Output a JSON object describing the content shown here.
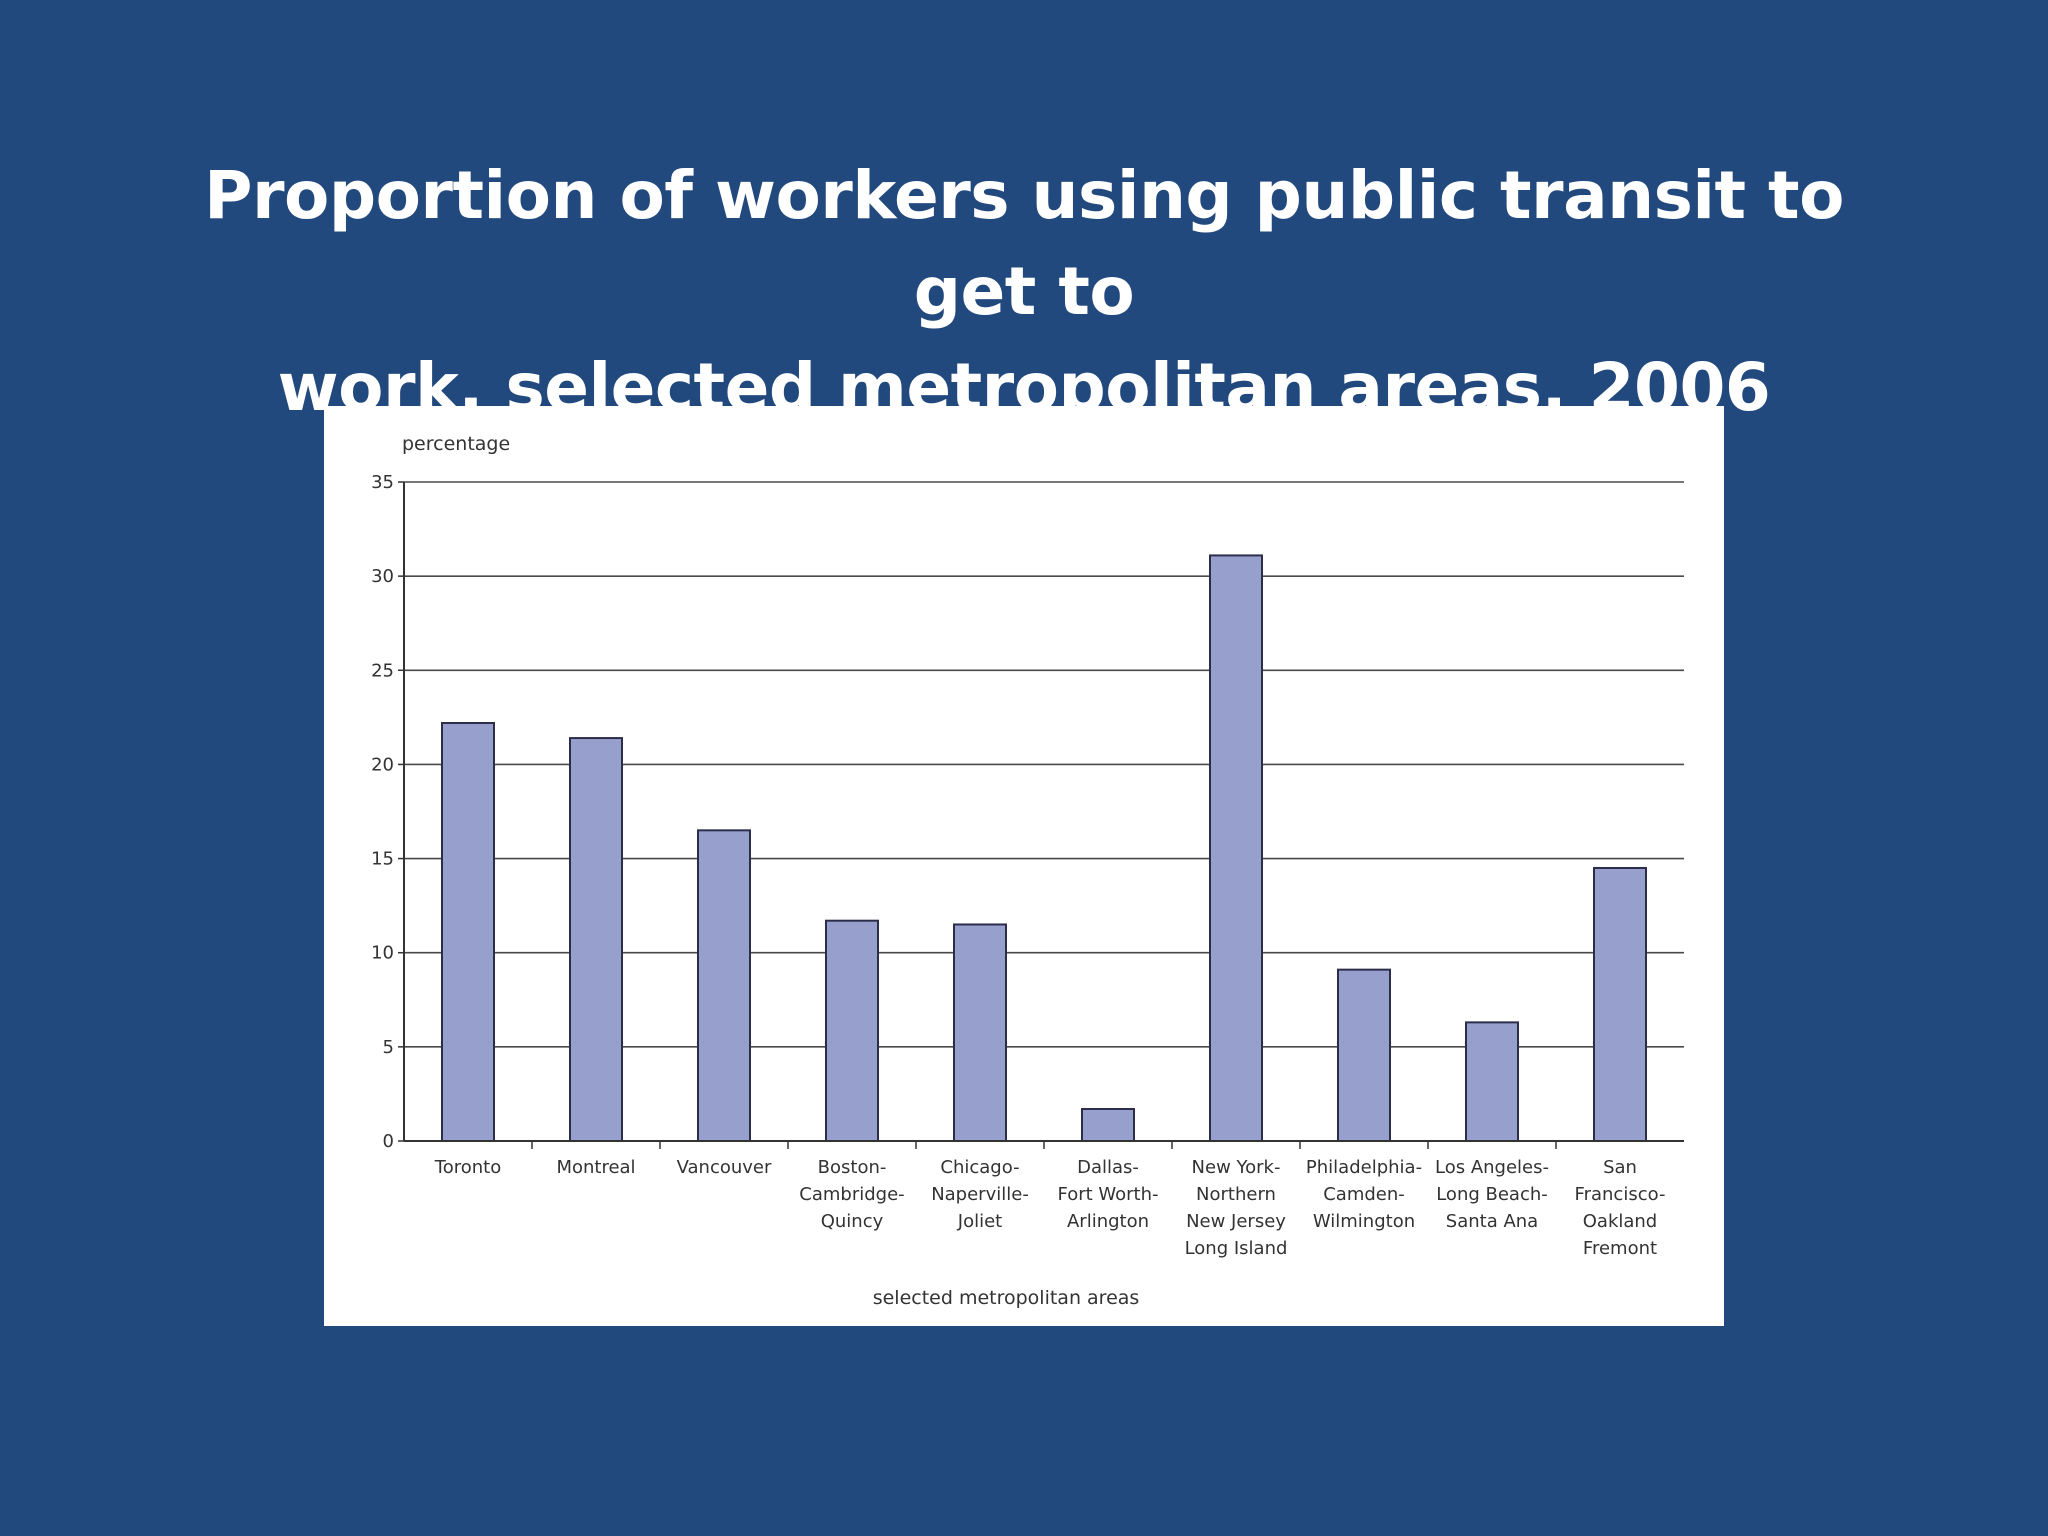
{
  "slide": {
    "title_line1": "Proportion of workers using public transit to get to",
    "title_line2": "work, selected metropolitan areas, 2006"
  },
  "colors": {
    "background": "#22497d",
    "title": "#ffffff",
    "panel": "#ffffff",
    "bar_fill": "#979fcd",
    "bar_stroke": "#2b2d4a",
    "gridline": "#4a4a4a"
  },
  "chart_data": {
    "type": "bar",
    "ylabel": "percentage",
    "xlabel": "selected metropolitan areas",
    "ylim": [
      0,
      35
    ],
    "yticks": [
      0,
      5,
      10,
      15,
      20,
      25,
      30,
      35
    ],
    "ytick_labels": [
      "0",
      "5",
      "10",
      "15",
      "20",
      "25",
      "30",
      "35"
    ],
    "grid": true,
    "legend": "none",
    "categories": [
      [
        "Toronto"
      ],
      [
        "Montreal"
      ],
      [
        "Vancouver"
      ],
      [
        "Boston-",
        "Cambridge-",
        "Quincy"
      ],
      [
        "Chicago-",
        "Naperville-",
        "Joliet"
      ],
      [
        "Dallas-",
        "Fort Worth-",
        "Arlington"
      ],
      [
        "New York-",
        "Northern",
        "New Jersey",
        "Long Island"
      ],
      [
        "Philadelphia-",
        "Camden-",
        "Wilmington"
      ],
      [
        "Los Angeles-",
        "Long Beach-",
        "Santa Ana"
      ],
      [
        "San",
        "Francisco-",
        "Oakland",
        "Fremont"
      ]
    ],
    "values": [
      22.2,
      21.4,
      16.5,
      11.7,
      11.5,
      1.7,
      31.1,
      9.1,
      6.3,
      14.5
    ]
  }
}
